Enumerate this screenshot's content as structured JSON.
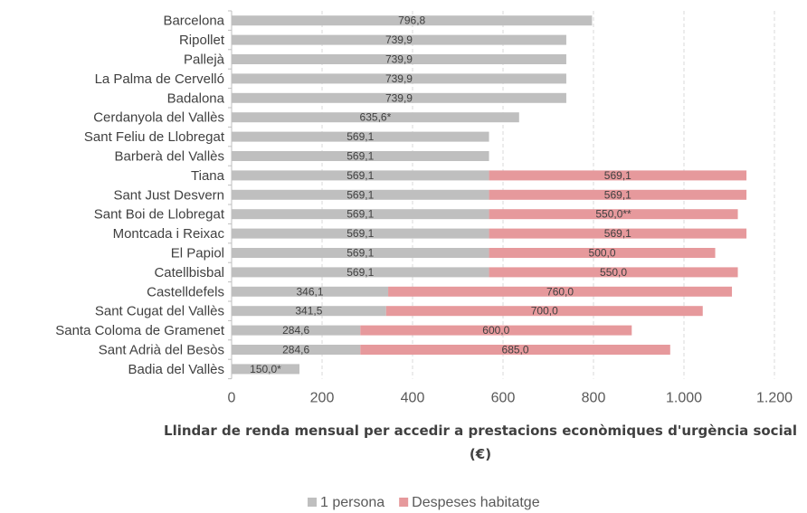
{
  "chart_data": {
    "type": "bar",
    "orientation": "horizontal",
    "stacked": true,
    "categories": [
      "Barcelona",
      "Ripollet",
      "Pallejà",
      "La Palma de Cervelló",
      "Badalona",
      "Cerdanyola del Vallès",
      "Sant Feliu de Llobregat",
      "Barberà del Vallès",
      "Tiana",
      "Sant Just Desvern",
      "Sant Boi de Llobregat",
      "Montcada i Reixac",
      "El Papiol",
      "Catellbisbal",
      "Castelldefels",
      "Sant Cugat del Vallès",
      "Santa Coloma de Gramenet",
      "Sant Adrià del Besòs",
      "Badia del Vallès"
    ],
    "series": [
      {
        "name": "1 persona",
        "color": "#bfbfbf",
        "values": [
          796.8,
          739.9,
          739.9,
          739.9,
          739.9,
          635.6,
          569.1,
          569.1,
          569.1,
          569.1,
          569.1,
          569.1,
          569.1,
          569.1,
          346.1,
          341.5,
          284.6,
          284.6,
          150.0
        ],
        "labels": [
          "796,8",
          "739,9",
          "739,9",
          "739,9",
          "739,9",
          "635,6*",
          "569,1",
          "569,1",
          "569,1",
          "569,1",
          "569,1",
          "569,1",
          "569,1",
          "569,1",
          "346,1",
          "341,5",
          "284,6",
          "284,6",
          "150,0*"
        ]
      },
      {
        "name": "Despeses habitatge",
        "color": "#e6999c",
        "values": [
          null,
          null,
          null,
          null,
          null,
          null,
          null,
          null,
          569.1,
          569.1,
          550.0,
          569.1,
          500.0,
          550.0,
          760.0,
          700.0,
          600.0,
          685.0,
          null
        ],
        "labels": [
          "",
          "",
          "",
          "",
          "",
          "",
          "",
          "",
          "569,1",
          "569,1",
          "550,0**",
          "569,1",
          "500,0",
          "550,0",
          "760,0",
          "700,0",
          "600,0",
          "685,0",
          ""
        ]
      }
    ],
    "xlim": [
      0,
      1200
    ],
    "xticks": [
      0,
      200,
      400,
      600,
      800,
      1000,
      1200
    ],
    "xtick_labels": [
      "0",
      "200",
      "400",
      "600",
      "800",
      "1.000",
      "1.200"
    ],
    "xlabel_lines": [
      "Llindar de renda mensual per accedir a prestacions econòmiques d'urgència social",
      "(€)"
    ],
    "grid": "vertical dashed",
    "legend_position": "bottom"
  }
}
